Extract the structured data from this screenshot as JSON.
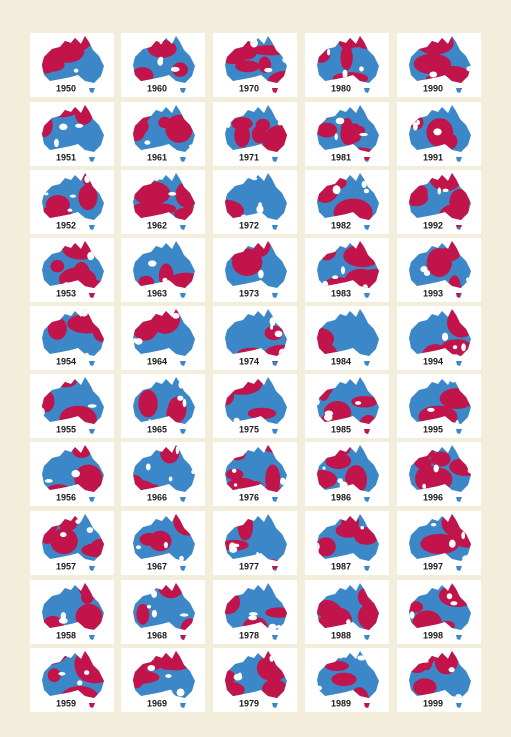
{
  "rows": [
    [
      "1950",
      "1960",
      "1970",
      "1980",
      "1990"
    ],
    [
      "1951",
      "1961",
      "1971",
      "1981",
      "1991"
    ],
    [
      "1952",
      "1962",
      "1972",
      "1982",
      "1992"
    ],
    [
      "1953",
      "1963",
      "1973",
      "1983",
      "1993"
    ],
    [
      "1954",
      "1964",
      "1974",
      "1984",
      "1994"
    ],
    [
      "1955",
      "1965",
      "1975",
      "1985",
      "1995"
    ],
    [
      "1956",
      "1966",
      "1976",
      "1986",
      "1996"
    ],
    [
      "1957",
      "1967",
      "1977",
      "1987",
      "1997"
    ],
    [
      "1958",
      "1968",
      "1978",
      "1988",
      "1998"
    ],
    [
      "1959",
      "1969",
      "1979",
      "1989",
      "1999"
    ]
  ]
}
